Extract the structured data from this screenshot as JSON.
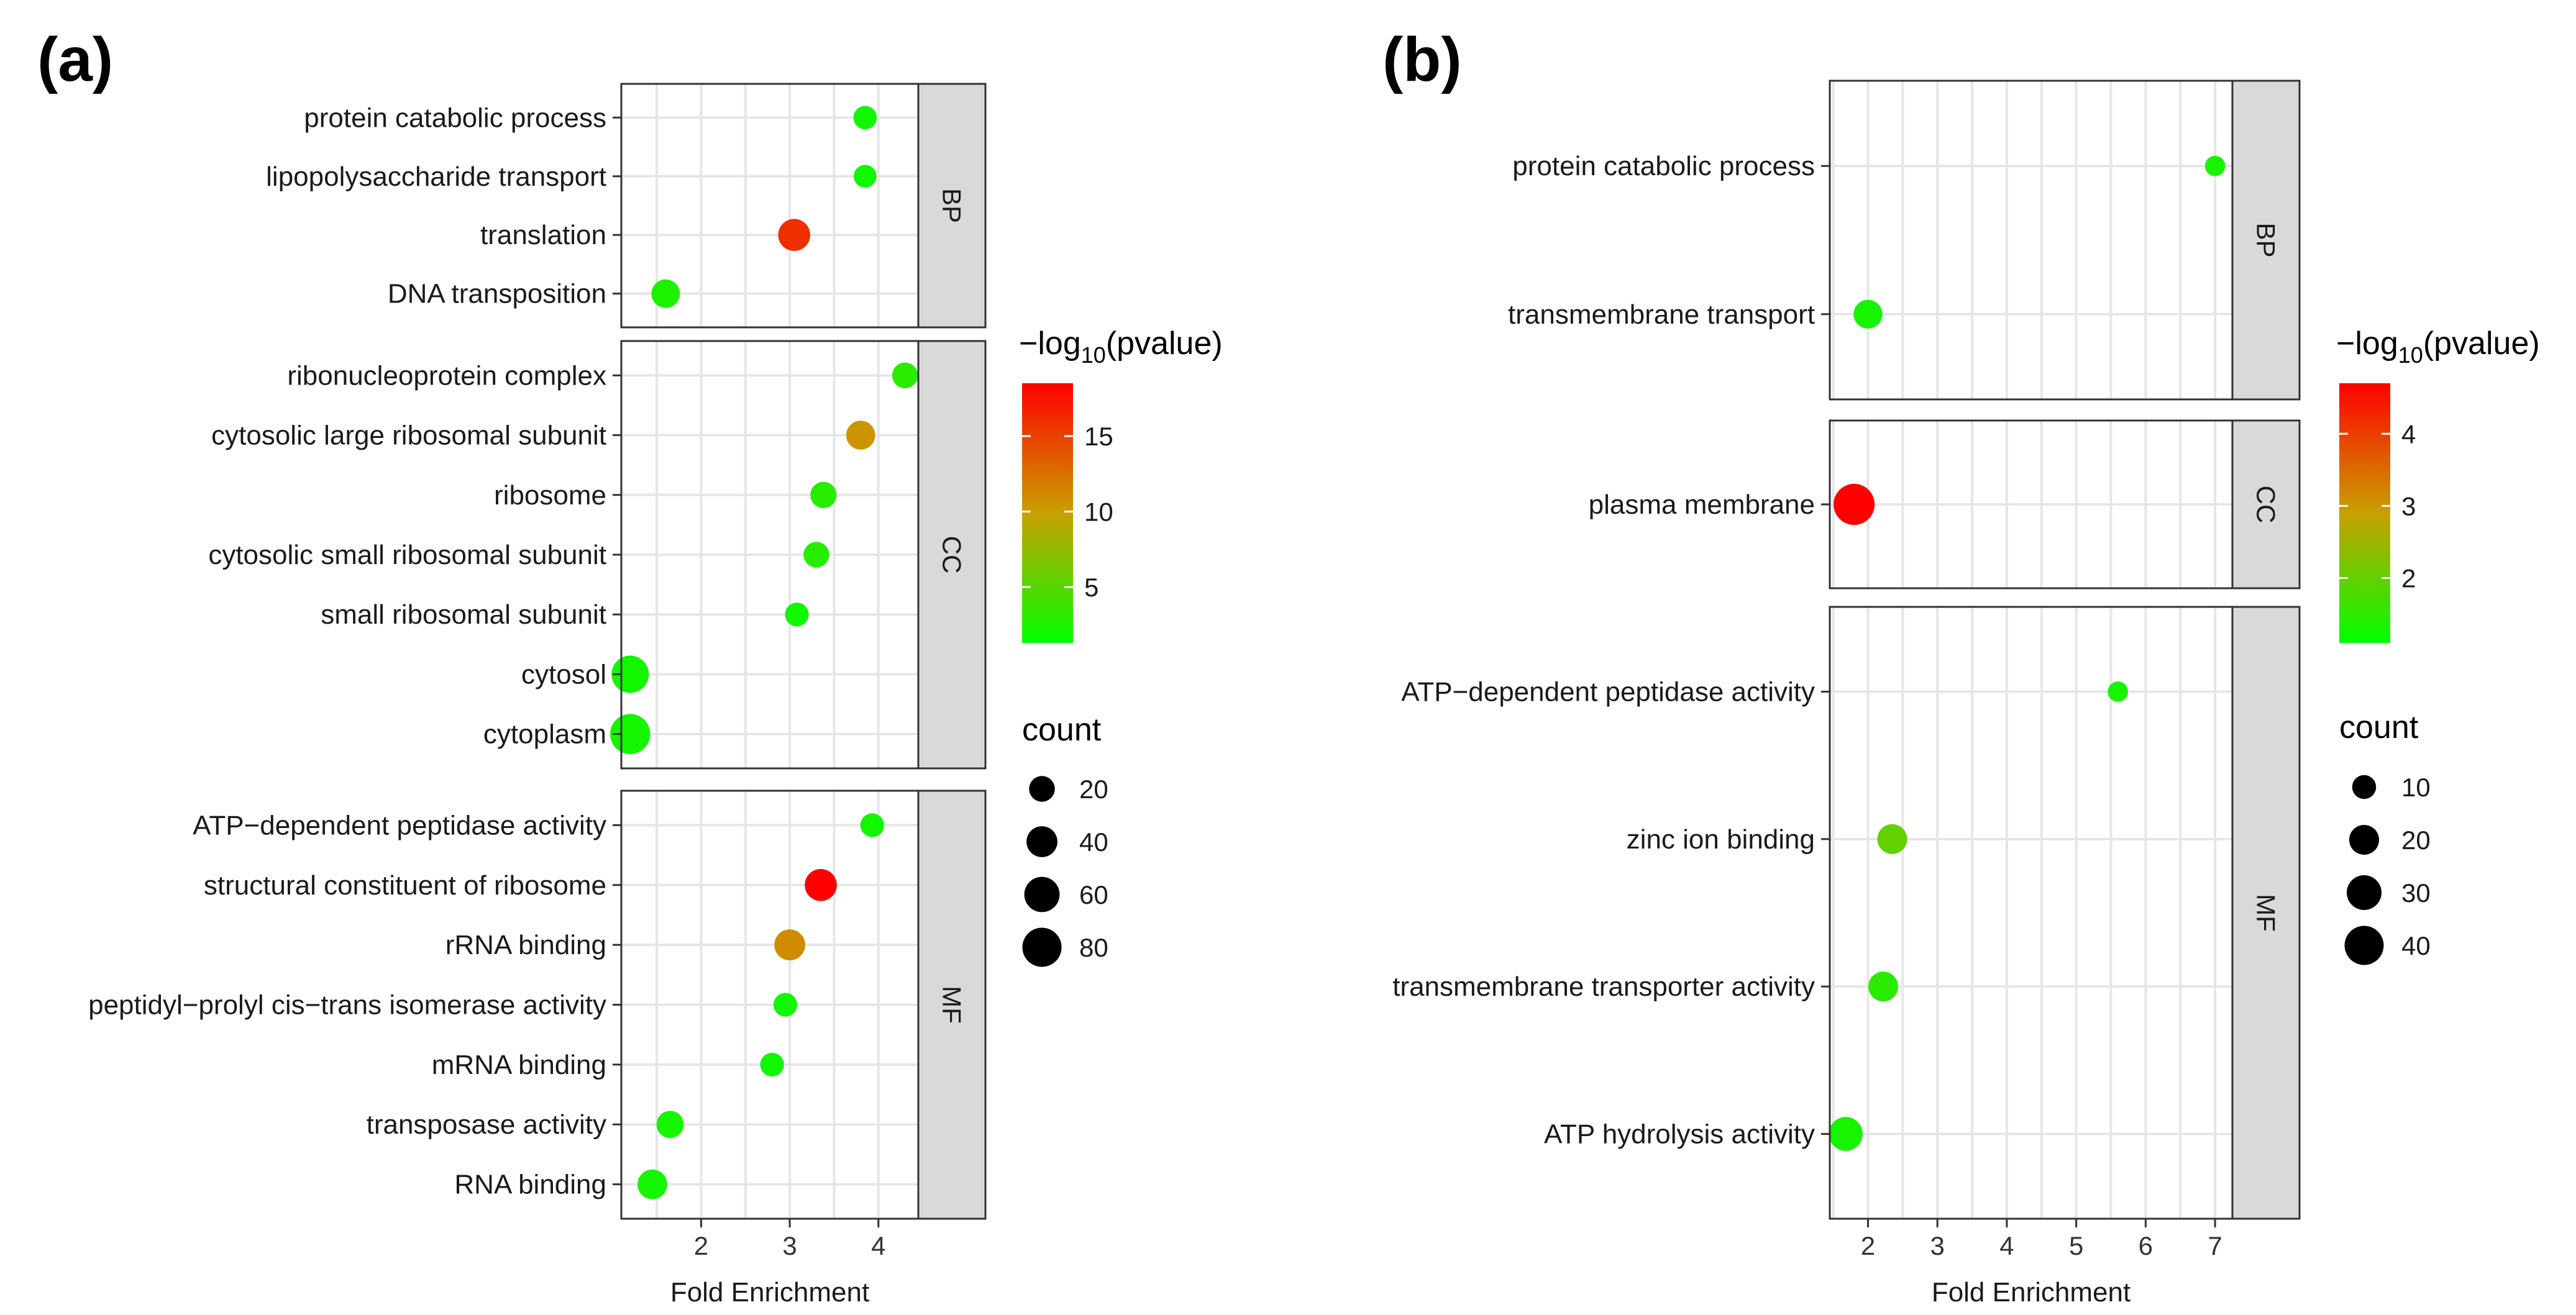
{
  "chart_data": [
    {
      "panel_label": "(a)",
      "type": "scatter",
      "xlabel": "Fold Enrichment",
      "xlim": [
        1.1,
        4.45
      ],
      "xticks": [
        2,
        3,
        4
      ],
      "color_legend": {
        "title_prefix": "−log",
        "title_subscript": "10",
        "title_suffix": "(pvalue)",
        "min": 1.3,
        "max": 18.5,
        "ticks": [
          5,
          10,
          15
        ],
        "low_color": "#00ff00",
        "mid_color": "#c8a000",
        "high_color": "#ff0000"
      },
      "size_legend": {
        "title": "count",
        "min": 5,
        "max": 90,
        "breaks": [
          20,
          40,
          60,
          80
        ]
      },
      "facets": [
        {
          "strip": "BP",
          "terms": [
            {
              "term": "protein catabolic process",
              "x": 3.85,
              "count": 12,
              "neglog10p": 2.0
            },
            {
              "term": "lipopolysaccharide transport",
              "x": 3.85,
              "count": 10,
              "neglog10p": 2.0
            },
            {
              "term": "translation",
              "x": 3.05,
              "count": 45,
              "neglog10p": 16.0
            },
            {
              "term": "DNA transposition",
              "x": 1.6,
              "count": 30,
              "neglog10p": 2.5
            }
          ]
        },
        {
          "strip": "CC",
          "terms": [
            {
              "term": "ribonucleoprotein complex",
              "x": 4.3,
              "count": 20,
              "neglog10p": 3.0
            },
            {
              "term": "cytosolic large ribosomal subunit",
              "x": 3.8,
              "count": 32,
              "neglog10p": 10.5
            },
            {
              "term": "ribosome",
              "x": 3.38,
              "count": 22,
              "neglog10p": 3.0
            },
            {
              "term": "cytosolic small ribosomal subunit",
              "x": 3.3,
              "count": 20,
              "neglog10p": 3.0
            },
            {
              "term": "small ribosomal subunit",
              "x": 3.08,
              "count": 13,
              "neglog10p": 2.0
            },
            {
              "term": "cytosol",
              "x": 1.2,
              "count": 70,
              "neglog10p": 2.0
            },
            {
              "term": "cytoplasm",
              "x": 1.2,
              "count": 85,
              "neglog10p": 2.2
            }
          ]
        },
        {
          "strip": "MF",
          "terms": [
            {
              "term": "ATP−dependent peptidase activity",
              "x": 3.93,
              "count": 13,
              "neglog10p": 2.0
            },
            {
              "term": "structural constituent of ribosome",
              "x": 3.35,
              "count": 45,
              "neglog10p": 18.5
            },
            {
              "term": "rRNA binding",
              "x": 3.0,
              "count": 40,
              "neglog10p": 11.0
            },
            {
              "term": "peptidyl−prolyl cis−trans isomerase activity",
              "x": 2.95,
              "count": 13,
              "neglog10p": 2.0
            },
            {
              "term": "mRNA binding",
              "x": 2.8,
              "count": 13,
              "neglog10p": 2.0
            },
            {
              "term": "transposase activity",
              "x": 1.65,
              "count": 25,
              "neglog10p": 2.2
            },
            {
              "term": "RNA binding",
              "x": 1.45,
              "count": 35,
              "neglog10p": 2.2
            }
          ]
        }
      ]
    },
    {
      "panel_label": "(b)",
      "type": "scatter",
      "xlabel": "Fold Enrichment",
      "xlim": [
        1.45,
        7.25
      ],
      "xticks": [
        2,
        3,
        4,
        5,
        6,
        7
      ],
      "color_legend": {
        "title_prefix": "−log",
        "title_subscript": "10",
        "title_suffix": "(pvalue)",
        "min": 1.1,
        "max": 4.7,
        "ticks": [
          2,
          3,
          4
        ],
        "low_color": "#00ff00",
        "mid_color": "#c8a000",
        "high_color": "#ff0000"
      },
      "size_legend": {
        "title": "count",
        "min": 3,
        "max": 48,
        "breaks": [
          10,
          20,
          30,
          40
        ]
      },
      "facets": [
        {
          "strip": "BP",
          "terms": [
            {
              "term": "protein catabolic process",
              "x": 7.0,
              "count": 5,
              "neglog10p": 1.3
            },
            {
              "term": "transmembrane transport",
              "x": 2.0,
              "count": 18,
              "neglog10p": 1.3
            }
          ]
        },
        {
          "strip": "CC",
          "terms": [
            {
              "term": "plasma membrane",
              "x": 1.8,
              "count": 45,
              "neglog10p": 4.7
            }
          ]
        },
        {
          "strip": "MF",
          "terms": [
            {
              "term": "ATP−dependent peptidase activity",
              "x": 5.6,
              "count": 5,
              "neglog10p": 1.3
            },
            {
              "term": "zinc ion binding",
              "x": 2.35,
              "count": 20,
              "neglog10p": 2.0
            },
            {
              "term": "transmembrane transporter activity",
              "x": 2.22,
              "count": 20,
              "neglog10p": 1.5
            },
            {
              "term": "ATP hydrolysis activity",
              "x": 1.68,
              "count": 28,
              "neglog10p": 1.3
            }
          ]
        }
      ]
    }
  ]
}
